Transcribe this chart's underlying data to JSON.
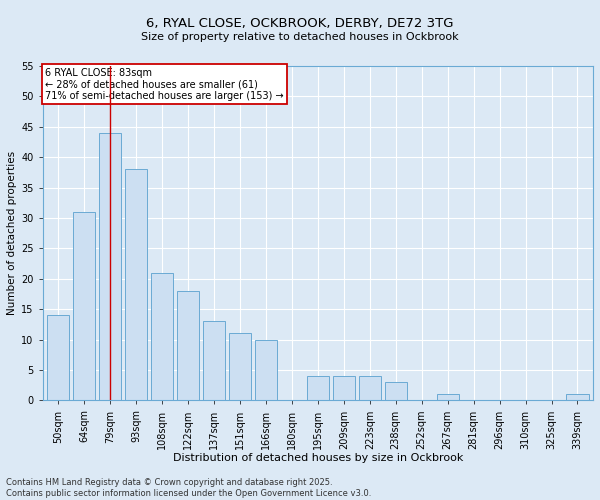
{
  "title_line1": "6, RYAL CLOSE, OCKBROOK, DERBY, DE72 3TG",
  "title_line2": "Size of property relative to detached houses in Ockbrook",
  "xlabel": "Distribution of detached houses by size in Ockbrook",
  "ylabel": "Number of detached properties",
  "categories": [
    "50sqm",
    "64sqm",
    "79sqm",
    "93sqm",
    "108sqm",
    "122sqm",
    "137sqm",
    "151sqm",
    "166sqm",
    "180sqm",
    "195sqm",
    "209sqm",
    "223sqm",
    "238sqm",
    "252sqm",
    "267sqm",
    "281sqm",
    "296sqm",
    "310sqm",
    "325sqm",
    "339sqm"
  ],
  "values": [
    14,
    31,
    44,
    38,
    21,
    18,
    13,
    11,
    10,
    0,
    4,
    4,
    4,
    3,
    0,
    1,
    0,
    0,
    0,
    0,
    1
  ],
  "bar_color": "#ccdff2",
  "bar_edge_color": "#6aaad4",
  "ylim": [
    0,
    55
  ],
  "yticks": [
    0,
    5,
    10,
    15,
    20,
    25,
    30,
    35,
    40,
    45,
    50,
    55
  ],
  "property_label": "6 RYAL CLOSE: 83sqm",
  "annotation_line1": "← 28% of detached houses are smaller (61)",
  "annotation_line2": "71% of semi-detached houses are larger (153) →",
  "vline_category_index": 2,
  "annotation_box_color": "#ffffff",
  "annotation_box_edge": "#cc0000",
  "vline_color": "#cc0000",
  "footer_line1": "Contains HM Land Registry data © Crown copyright and database right 2025.",
  "footer_line2": "Contains public sector information licensed under the Open Government Licence v3.0.",
  "bg_color": "#dce9f5",
  "plot_bg_color": "#dce9f5",
  "title_fontsize": 9.5,
  "subtitle_fontsize": 8.0,
  "tick_fontsize": 7.0,
  "ylabel_fontsize": 7.5,
  "xlabel_fontsize": 8.0,
  "annotation_fontsize": 7.0,
  "footer_fontsize": 6.0
}
